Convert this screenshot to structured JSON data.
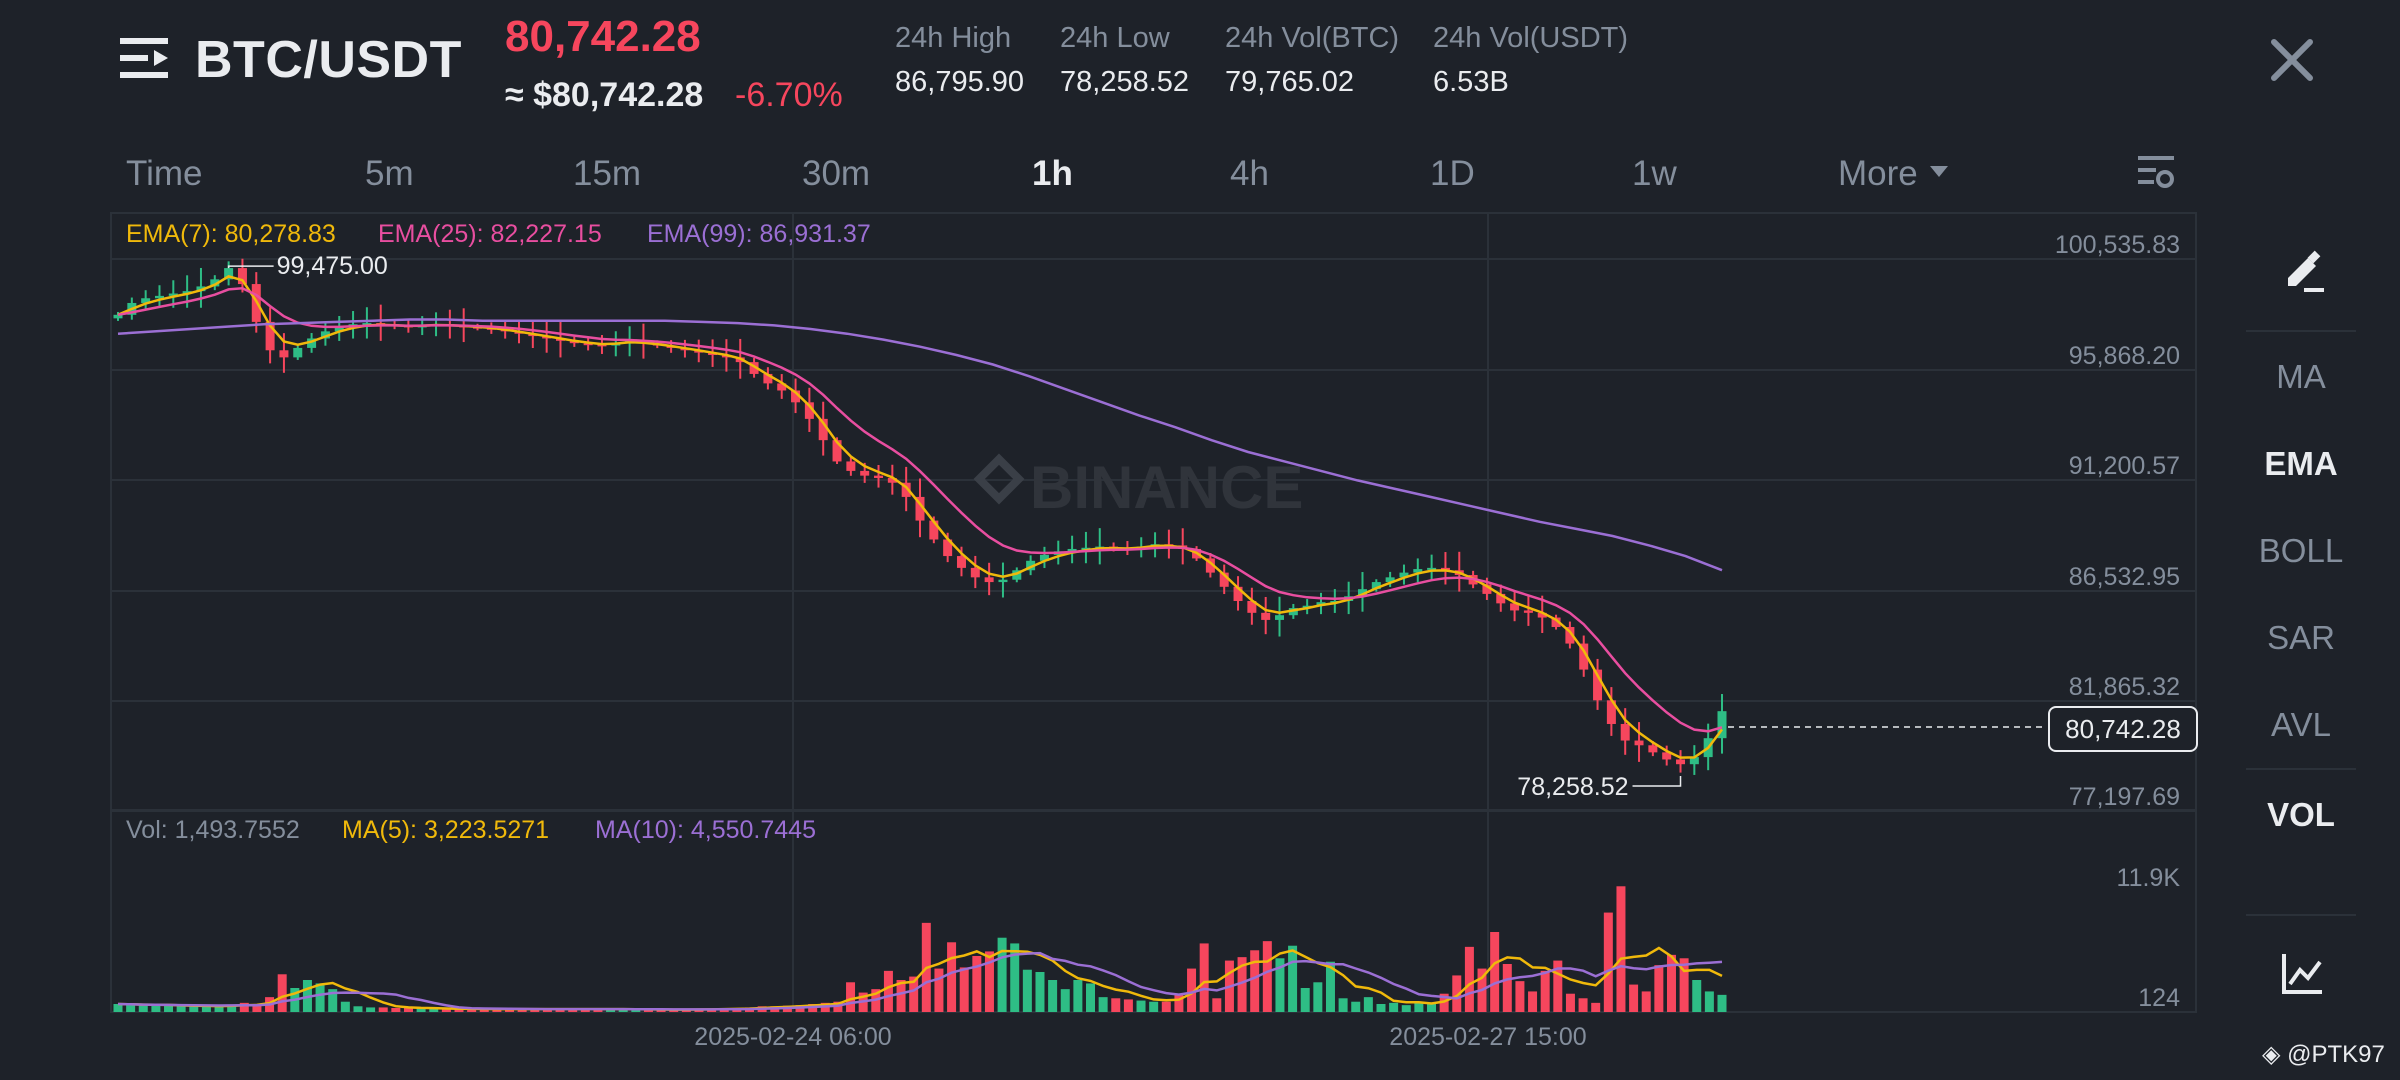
{
  "header": {
    "pair": "BTC/USDT",
    "last_price": "80,742.28",
    "last_price_usd": "≈ $80,742.28",
    "change_pct": "-6.70%",
    "stats": [
      {
        "label": "24h High",
        "value": "86,795.90"
      },
      {
        "label": "24h Low",
        "value": "78,258.52"
      },
      {
        "label": "24h Vol(BTC)",
        "value": "79,765.02"
      },
      {
        "label": "24h Vol(USDT)",
        "value": "6.53B"
      }
    ],
    "icons": {
      "menu": "menu-lines-icon",
      "close": "close-icon"
    }
  },
  "intervals": [
    {
      "label": "Time",
      "active": false
    },
    {
      "label": "5m",
      "active": false
    },
    {
      "label": "15m",
      "active": false
    },
    {
      "label": "30m",
      "active": false
    },
    {
      "label": "1h",
      "active": true
    },
    {
      "label": "4h",
      "active": false
    },
    {
      "label": "1D",
      "active": false
    },
    {
      "label": "1w",
      "active": false
    },
    {
      "label": "More",
      "active": false
    }
  ],
  "legend": {
    "ema7": "EMA(7): 80,278.83",
    "ema25": "EMA(25): 82,227.15",
    "ema99": "EMA(99): 86,931.37",
    "vol": "Vol: 1,493.7552",
    "ma5": "MA(5): 3,223.5271",
    "ma10": "MA(10): 4,550.7445"
  },
  "colors": {
    "up": "#2ebd85",
    "down": "#f6465d",
    "ema7": "#f0b90b",
    "ema25": "#e84ea0",
    "ema99": "#9b6fd4",
    "ma5": "#f0b90b",
    "ma10": "#9b6fd4"
  },
  "sidebar": [
    {
      "label": "MA",
      "active": false
    },
    {
      "label": "EMA",
      "active": true
    },
    {
      "label": "BOLL",
      "active": false
    },
    {
      "label": "SAR",
      "active": false
    },
    {
      "label": "AVL",
      "active": false
    },
    {
      "label": "VOL",
      "active": true
    }
  ],
  "watermark_brand": "BINANCE",
  "watermark_user": "@PTK97",
  "chart_data": {
    "type": "candlestick",
    "price_axis_ticks": [
      "100,535.83",
      "95,868.20",
      "91,200.57",
      "86,532.95",
      "81,865.32",
      "77,197.69"
    ],
    "ylim": [
      75000,
      100535.83
    ],
    "x_ticks": [
      "2025-02-24 06:00",
      "2025-02-27 15:00"
    ],
    "high_marker": "99,475.00",
    "low_marker": "78,258.52",
    "current_price": "80,742.28",
    "volume_axis_ticks": [
      "11.9K",
      "124"
    ],
    "price_path": [
      97500,
      98000,
      98200,
      98300,
      98400,
      98500,
      98700,
      99000,
      99475,
      98800,
      97200,
      96000,
      95700,
      96100,
      96500,
      96800,
      97000,
      97100,
      97150,
      97100,
      97050,
      97000,
      97050,
      97100,
      97050,
      97000,
      96950,
      96900,
      96800,
      96700,
      96600,
      96500,
      96400,
      96300,
      96250,
      96200,
      96300,
      96400,
      96300,
      96200,
      96100,
      96000,
      95900,
      95800,
      95700,
      95500,
      95000,
      94600,
      94300,
      93800,
      93100,
      92200,
      91300,
      90900,
      90700,
      90600,
      90400,
      89800,
      88800,
      88000,
      87300,
      86800,
      86400,
      86200,
      86300,
      86700,
      87100,
      87350,
      87500,
      87600,
      87650,
      87700,
      87650,
      87600,
      87700,
      87800,
      87750,
      87600,
      87200,
      86600,
      86000,
      85400,
      84900,
      84600,
      84800,
      85100,
      85200,
      85350,
      85400,
      85600,
      85900,
      86200,
      86400,
      86600,
      86750,
      86800,
      86700,
      86500,
      86100,
      85700,
      85300,
      85000,
      84900,
      84700,
      84300,
      83600,
      82500,
      81200,
      80200,
      79500,
      79300,
      79000,
      78700,
      78500,
      78800,
      79600,
      80742
    ],
    "ema99": [
      96700,
      96800,
      96900,
      97000,
      97100,
      97150,
      97200,
      97250,
      97300,
      97300,
      97250,
      97250,
      97250,
      97250,
      97250,
      97250,
      97200,
      97150,
      97050,
      96900,
      96700,
      96450,
      96150,
      95800,
      95400,
      94900,
      94350,
      93800,
      93250,
      92750,
      92200,
      91700,
      91300,
      90900,
      90500,
      90150,
      89800,
      89450,
      89100,
      88750,
      88450,
      88150,
      87750,
      87300,
      86700
    ],
    "volume": [
      700,
      650,
      600,
      600,
      550,
      500,
      500,
      500,
      550,
      600,
      800,
      650,
      1300,
      3300,
      2100,
      2800,
      2500,
      2000,
      900,
      500,
      400,
      400,
      350,
      350,
      300,
      300,
      250,
      250,
      250,
      250,
      250,
      250,
      250,
      250,
      250,
      250,
      250,
      250,
      250,
      250,
      250,
      200,
      200,
      200,
      200,
      250,
      250,
      250,
      300,
      300,
      400,
      500,
      500,
      550,
      600,
      700,
      800,
      900,
      2600,
      1700,
      2000,
      3600,
      2800,
      3100,
      7800,
      3800,
      6100,
      3900,
      4900,
      5300,
      6500,
      6000,
      3700,
      3500,
      2800,
      2000,
      2800,
      2500,
      1300,
      1200,
      1100,
      1000,
      900,
      900,
      1500,
      3800,
      6000,
      1200,
      4500,
      4800,
      5400,
      6200,
      4700,
      5800,
      2100,
      2600,
      4400,
      1200,
      900,
      1300,
      700,
      800,
      600,
      900,
      700,
      1600,
      3200,
      5700,
      3800,
      7000,
      4200,
      2700,
      1800,
      3600,
      4500,
      1600,
      1200,
      800,
      8700,
      11000,
      2400,
      1800,
      4100,
      5000,
      4700,
      2800,
      1800,
      1500
    ]
  }
}
